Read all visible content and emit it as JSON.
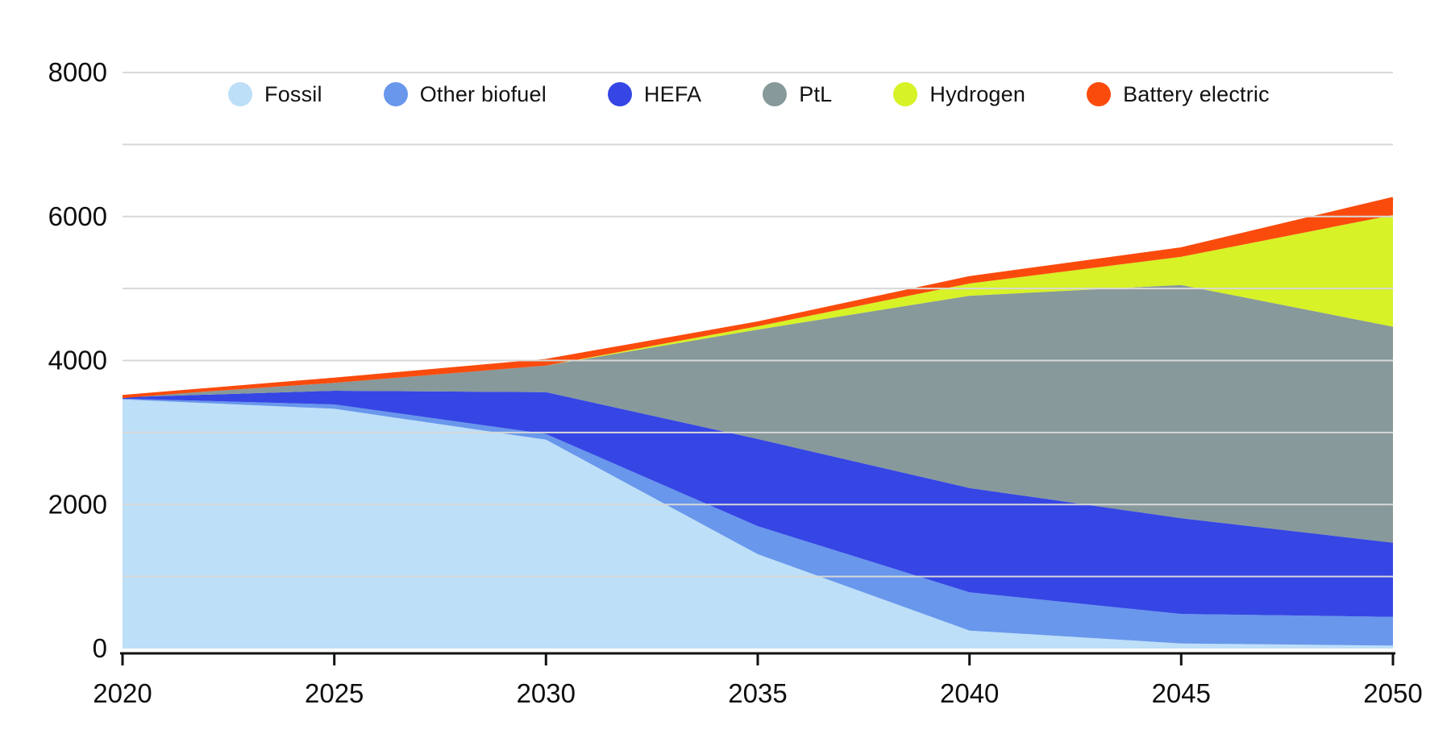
{
  "chart_data": {
    "type": "area",
    "stacked": true,
    "title": "",
    "xlabel": "",
    "ylabel": "",
    "x": [
      2020,
      2025,
      2030,
      2035,
      2040,
      2045,
      2050
    ],
    "series": [
      {
        "name": "Fossil",
        "color": "#BDDFF8",
        "values": [
          3460,
          3330,
          2900,
          1310,
          250,
          70,
          40
        ]
      },
      {
        "name": "Other biofuel",
        "color": "#6897EC",
        "values": [
          10,
          60,
          80,
          390,
          530,
          410,
          400
        ]
      },
      {
        "name": "HEFA",
        "color": "#3546E4",
        "values": [
          20,
          190,
          580,
          1210,
          1450,
          1330,
          1030
        ]
      },
      {
        "name": "PtL",
        "color": "#87999A",
        "values": [
          0,
          110,
          370,
          1520,
          2670,
          3240,
          3000
        ]
      },
      {
        "name": "Hydrogen",
        "color": "#D7F226",
        "values": [
          0,
          0,
          0,
          45,
          170,
          390,
          1550
        ]
      },
      {
        "name": "Battery electric",
        "color": "#FA4B0D",
        "values": [
          10,
          50,
          70,
          45,
          80,
          110,
          230
        ]
      }
    ],
    "totals": [
      3500,
      3740,
      4000,
      4520,
      5150,
      5550,
      6250
    ],
    "ylim": [
      0,
      8000
    ],
    "gridline_step": 1000,
    "grid": true,
    "legend_position": "top-inside"
  },
  "y_axis": {
    "tick_labels": [
      "0",
      "2000",
      "4000",
      "6000",
      "8000"
    ],
    "tick_values": [
      0,
      2000,
      4000,
      6000,
      8000
    ]
  },
  "x_axis": {
    "tick_labels": [
      "2020",
      "2025",
      "2030",
      "2035",
      "2040",
      "2045",
      "2050"
    ]
  },
  "colors": {
    "gridline": "#D8D8D8",
    "axis": "#111111",
    "tick_label": "#0E0E0E"
  }
}
